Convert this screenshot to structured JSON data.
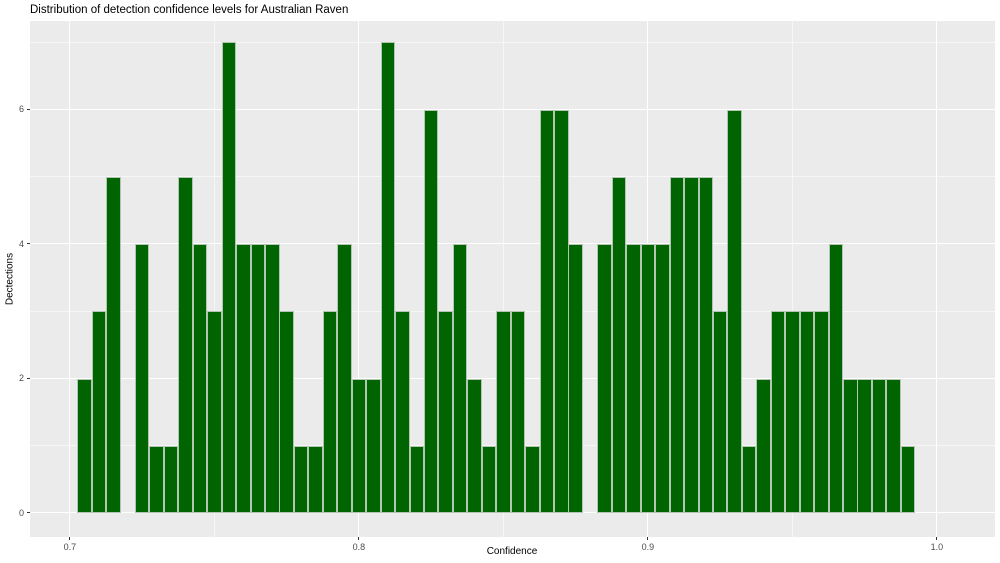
{
  "chart_data": {
    "type": "bar",
    "subtype": "histogram",
    "title": "Distribution of detection confidence levels for Australian Raven",
    "xlabel": "Confidence",
    "ylabel": "Dectections",
    "x_breaks": [
      0.7,
      0.8,
      0.9,
      1.0
    ],
    "x_tick_labels": [
      "0.7",
      "0.8",
      "0.9",
      "1.0"
    ],
    "x_minor_breaks": [
      0.75,
      0.85,
      0.95
    ],
    "y_breaks": [
      0,
      2,
      4,
      6
    ],
    "y_tick_labels": [
      "0",
      "2",
      "4",
      "6"
    ],
    "y_minor_breaks": [
      1,
      3,
      5,
      7
    ],
    "xlim": [
      0.6862,
      1.0201
    ],
    "ylim": [
      -0.357,
      7.316
    ],
    "grid": true,
    "legend": null,
    "bin_width": 0.005,
    "bin_centers": [
      0.705,
      0.71,
      0.715,
      0.72,
      0.725,
      0.73,
      0.735,
      0.74,
      0.745,
      0.75,
      0.755,
      0.76,
      0.765,
      0.77,
      0.775,
      0.78,
      0.785,
      0.79,
      0.795,
      0.8,
      0.805,
      0.81,
      0.815,
      0.82,
      0.825,
      0.83,
      0.835,
      0.84,
      0.845,
      0.85,
      0.855,
      0.86,
      0.865,
      0.87,
      0.875,
      0.88,
      0.885,
      0.89,
      0.895,
      0.9,
      0.905,
      0.91,
      0.915,
      0.92,
      0.925,
      0.93,
      0.935,
      0.94,
      0.945,
      0.95,
      0.955,
      0.96,
      0.965,
      0.97,
      0.975,
      0.98,
      0.985,
      0.99
    ],
    "counts": [
      2,
      3,
      5,
      0,
      4,
      1,
      1,
      5,
      4,
      3,
      7,
      4,
      4,
      4,
      3,
      1,
      1,
      3,
      4,
      2,
      2,
      7,
      3,
      1,
      6,
      3,
      4,
      2,
      1,
      3,
      3,
      1,
      6,
      6,
      4,
      0,
      4,
      5,
      4,
      4,
      4,
      5,
      5,
      5,
      3,
      6,
      1,
      2,
      3,
      3,
      3,
      3,
      4,
      2,
      2,
      2,
      2,
      1
    ],
    "colors": {
      "bar_fill": "#006400",
      "bar_border": "#b3c6b3",
      "panel_bg": "#EBEBEB",
      "grid_major": "#FFFFFF",
      "axis_text": "#4D4D4D",
      "title_text": "#000000"
    }
  }
}
